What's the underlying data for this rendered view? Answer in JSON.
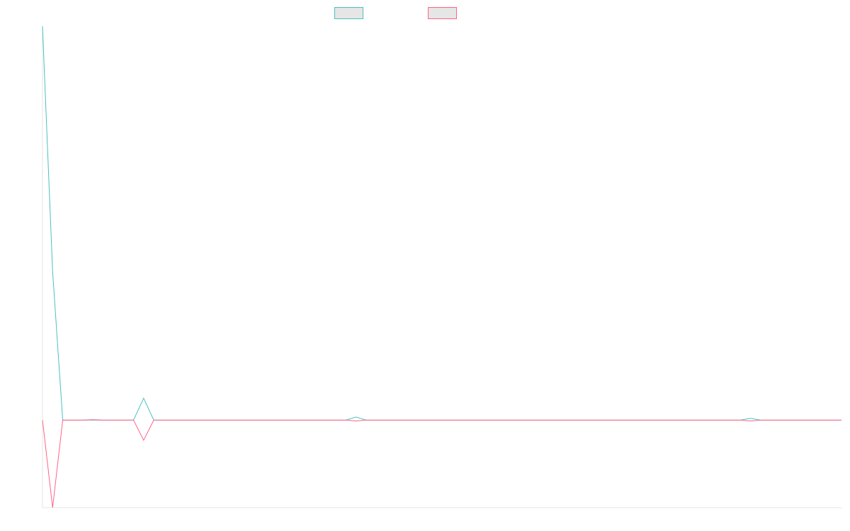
{
  "chart_data": {
    "type": "line",
    "title": "",
    "xlabel": "",
    "ylabel": "",
    "legend_position": "top-center",
    "grid": false,
    "ylim": [
      -1.0,
      4.5
    ],
    "x": [
      0,
      1,
      2,
      3,
      4,
      5,
      6,
      7,
      8,
      9,
      10,
      11,
      12,
      13,
      14,
      15,
      16,
      17,
      18,
      19,
      20,
      21,
      22,
      23,
      24,
      25,
      26,
      27,
      28,
      29,
      30,
      31,
      32,
      33,
      34,
      35,
      36,
      37,
      38,
      39,
      40,
      41,
      42,
      43,
      44,
      45,
      46,
      47,
      48,
      49,
      50,
      51,
      52,
      53,
      54,
      55,
      56,
      57,
      58,
      59,
      60,
      61,
      62,
      63,
      64,
      65,
      66,
      67,
      68,
      69,
      70,
      71,
      72,
      73,
      74,
      75,
      76,
      77,
      78,
      79
    ],
    "series": [
      {
        "name": "",
        "color": "#4bc0c0",
        "values": [
          4.5,
          1.7,
          0,
          0,
          0,
          0,
          0,
          0,
          0,
          0,
          0.25,
          0,
          0,
          0,
          0,
          0,
          0,
          0,
          0,
          0,
          0,
          0,
          0,
          0,
          0,
          0,
          0,
          0,
          0,
          0,
          0,
          0.035,
          0,
          0,
          0,
          0,
          0,
          0,
          0,
          0,
          0,
          0,
          0,
          0,
          0,
          0,
          0,
          0,
          0,
          0,
          0,
          0,
          0,
          0,
          0,
          0,
          0,
          0,
          0,
          0,
          0,
          0,
          0,
          0,
          0,
          0,
          0,
          0,
          0,
          0,
          0.02,
          0,
          0,
          0,
          0,
          0,
          0,
          0,
          0,
          0
        ]
      },
      {
        "name": "",
        "color": "#ff6384",
        "values": [
          0,
          -1.0,
          0,
          0,
          0,
          0.005,
          0,
          0,
          0,
          0,
          -0.23,
          0,
          0,
          0,
          0,
          0,
          0,
          0,
          0,
          0,
          0,
          0,
          0,
          0,
          0,
          0,
          0,
          0,
          0,
          0,
          0,
          -0.01,
          0,
          0,
          0,
          0,
          0,
          0,
          0,
          0,
          0,
          0,
          0,
          0,
          0,
          0,
          0,
          0,
          0,
          0,
          0,
          0,
          0,
          0,
          0,
          0,
          0,
          0,
          0,
          0,
          0,
          0,
          0,
          0,
          0,
          0,
          0,
          0,
          0,
          0,
          -0.01,
          0,
          0,
          0,
          0,
          0,
          0,
          0,
          0,
          0
        ]
      }
    ]
  }
}
